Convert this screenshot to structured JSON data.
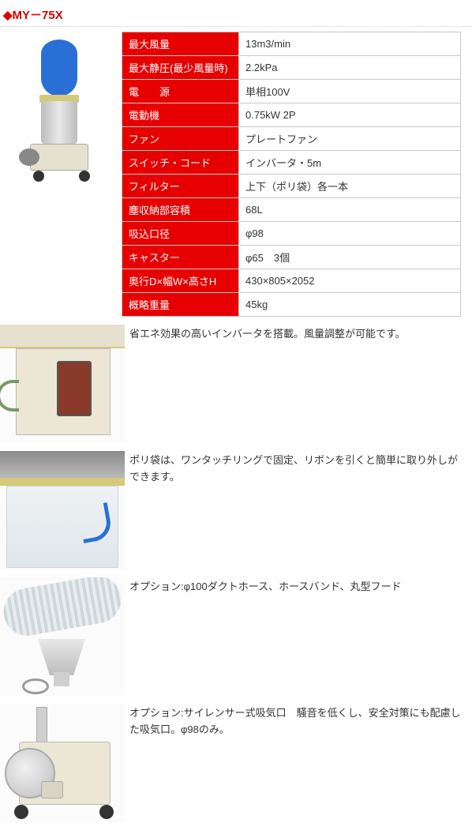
{
  "title": "◆MY－75X",
  "colors": {
    "title": "#d80000",
    "spec_header_bg": "#e60000",
    "spec_header_fg": "#ffffff",
    "spec_border": "#c9c9c9",
    "spec_value_bg": "#ffffff",
    "body_text": "#333333"
  },
  "spec_table": {
    "rows": [
      {
        "label": "最大風量",
        "value": "13m3/min"
      },
      {
        "label": "最大静圧(最少風量時)",
        "value": "2.2kPa"
      },
      {
        "label": "電　　源",
        "value": "単相100V"
      },
      {
        "label": "電動機",
        "value": "0.75kW 2P"
      },
      {
        "label": "ファン",
        "value": "プレートファン"
      },
      {
        "label": "スイッチ・コード",
        "value": "インバータ・5m"
      },
      {
        "label": "フィルター",
        "value": "上下（ポリ袋）各一本"
      },
      {
        "label": "塵収納部容積",
        "value": "68L"
      },
      {
        "label": "吸込口径",
        "value": "φ98"
      },
      {
        "label": "キャスター",
        "value": "φ65　3個"
      },
      {
        "label": "奥行D×幅W×高さH",
        "value": "430×805×2052"
      },
      {
        "label": "概略重量",
        "value": "45kg"
      }
    ]
  },
  "details": [
    {
      "text": "省エネ効果の高いインバータを搭載。風量調整が可能です。"
    },
    {
      "text": "ポリ袋は、ワンタッチリングで固定、リボンを引くと簡単に取り外しができます。"
    },
    {
      "text": "オプション:φ100ダクトホース、ホースバンド、丸型フード"
    },
    {
      "text": "オプション:サイレンサー式吸気口　騒音を低くし、安全対策にも配慮した吸気口。φ98のみ。"
    }
  ]
}
